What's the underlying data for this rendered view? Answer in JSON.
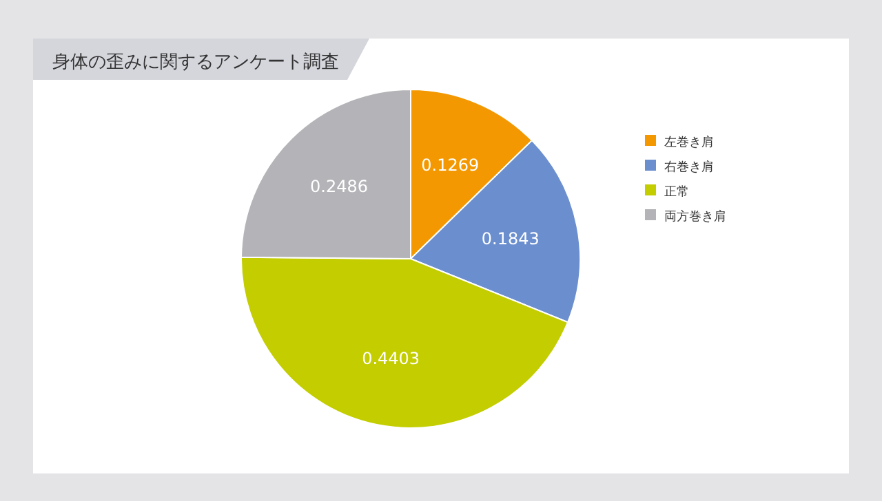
{
  "chart_data": {
    "type": "pie",
    "title": "身体の歪みに関するアンケート調査",
    "categories": [
      "左巻き肩",
      "右巻き肩",
      "正常",
      "両方巻き肩"
    ],
    "values": [
      0.1269,
      0.1843,
      0.4403,
      0.2486
    ],
    "colors": [
      "#f39800",
      "#6b8fce",
      "#c3cd00",
      "#b4b4b8"
    ],
    "data_labels": true,
    "legend": "right"
  }
}
